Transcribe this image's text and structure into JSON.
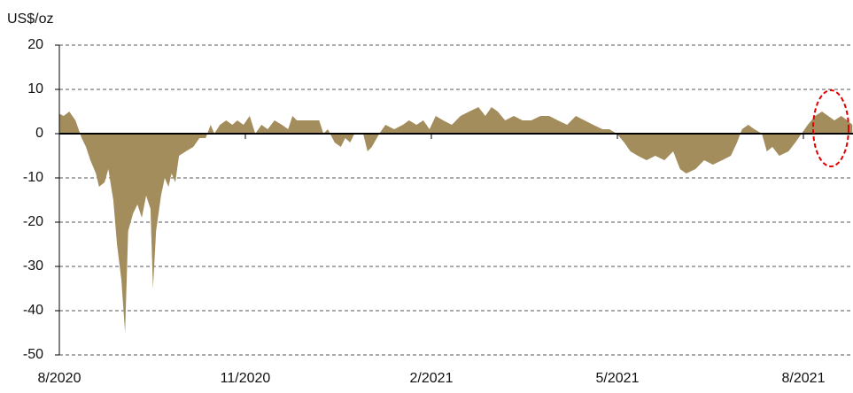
{
  "chart_data": {
    "type": "area",
    "y_label": "US$/oz",
    "x": [
      0,
      0.07,
      0.16,
      0.26,
      0.36,
      0.43,
      0.5,
      0.59,
      0.64,
      0.73,
      0.79,
      0.87,
      0.93,
      1.0,
      1.06,
      1.11,
      1.19,
      1.26,
      1.33,
      1.4,
      1.47,
      1.51,
      1.56,
      1.64,
      1.7,
      1.76,
      1.81,
      1.87,
      1.93,
      2.04,
      2.16,
      2.26,
      2.36,
      2.44,
      2.5,
      2.59,
      2.69,
      2.79,
      2.87,
      2.97,
      3.07,
      3.16,
      3.26,
      3.36,
      3.47,
      3.59,
      3.69,
      3.76,
      3.83,
      3.97,
      4.19,
      4.26,
      4.33,
      4.44,
      4.54,
      4.61,
      4.69,
      4.76,
      4.9,
      4.97,
      5.04,
      5.16,
      5.26,
      5.4,
      5.54,
      5.64,
      5.76,
      5.87,
      5.97,
      6.07,
      6.19,
      6.33,
      6.47,
      6.61,
      6.76,
      6.87,
      6.97,
      7.07,
      7.19,
      7.33,
      7.47,
      7.61,
      7.76,
      7.9,
      8.04,
      8.19,
      8.33,
      8.47,
      8.61,
      8.76,
      8.87,
      8.99,
      9.11,
      9.21,
      9.33,
      9.47,
      9.61,
      9.76,
      9.9,
      10.01,
      10.11,
      10.26,
      10.4,
      10.54,
      10.69,
      10.83,
      10.93,
      11.01,
      11.11,
      11.21,
      11.33,
      11.41,
      11.5,
      11.61,
      11.76,
      11.87,
      11.97,
      12.07,
      12.19,
      12.3,
      12.4,
      12.5,
      12.61,
      12.71,
      12.79
    ],
    "values": [
      4.5,
      4,
      5,
      3,
      -1,
      -3,
      -6,
      -9,
      -12,
      -11,
      -8,
      -15,
      -25,
      -33,
      -45,
      -22,
      -18,
      -16,
      -19,
      -14,
      -17,
      -35,
      -22,
      -14,
      -10,
      -12,
      -9,
      -11,
      -5,
      -4,
      -3,
      -1,
      -1,
      2,
      0,
      2,
      3,
      2,
      3,
      2,
      4,
      0,
      2,
      1,
      3,
      2,
      1,
      4,
      3,
      3,
      3,
      0,
      1,
      -2,
      -3,
      -1,
      -2,
      0,
      0,
      -4,
      -3,
      0,
      2,
      1,
      2,
      3,
      2,
      3,
      1,
      4,
      3,
      2,
      4,
      5,
      6,
      4,
      6,
      5,
      3,
      4,
      3,
      3,
      4,
      4,
      3,
      2,
      4,
      3,
      2,
      1,
      1,
      0,
      -2,
      -4,
      -5,
      -6,
      -5,
      -6,
      -4,
      -8,
      -9,
      -8,
      -6,
      -7,
      -6,
      -5,
      -2,
      1,
      2,
      1,
      0,
      -4,
      -3,
      -5,
      -4,
      -2,
      0,
      2,
      4,
      5,
      4,
      3,
      4,
      3,
      2
    ],
    "color": "#a38d5d",
    "xlim": [
      0,
      12.8
    ],
    "xticks": [
      {
        "value": 0,
        "label": "8/2020"
      },
      {
        "value": 3,
        "label": "11/2020"
      },
      {
        "value": 6,
        "label": "2/2021"
      },
      {
        "value": 9,
        "label": "5/2021"
      },
      {
        "value": 12,
        "label": "8/2021"
      }
    ],
    "ylim": [
      -50,
      20
    ],
    "yticks": [
      -50,
      -40,
      -30,
      -20,
      -10,
      0,
      10,
      20
    ],
    "grid": true
  }
}
